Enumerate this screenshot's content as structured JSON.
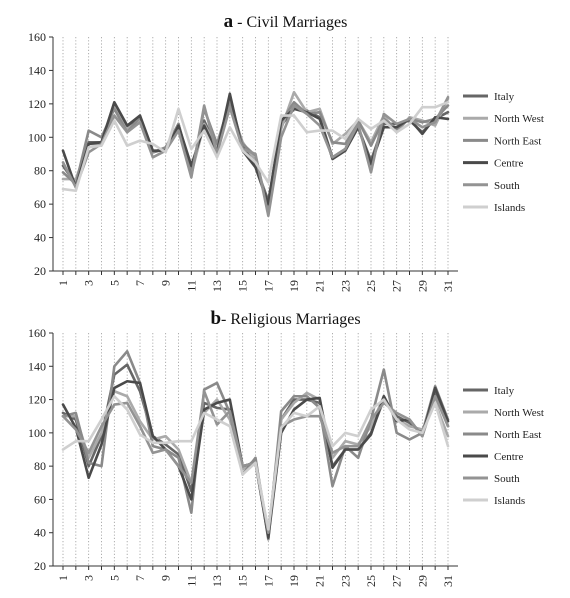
{
  "chart_data": [
    {
      "type": "line",
      "panel_letter": "a",
      "title": " - Civil Marriages",
      "x": [
        1,
        2,
        3,
        4,
        5,
        6,
        7,
        8,
        9,
        10,
        11,
        12,
        13,
        14,
        15,
        16,
        17,
        18,
        19,
        20,
        21,
        22,
        23,
        24,
        25,
        26,
        27,
        28,
        29,
        30,
        31
      ],
      "xticks": [
        1,
        3,
        5,
        7,
        9,
        11,
        13,
        15,
        17,
        19,
        21,
        23,
        25,
        27,
        29,
        31
      ],
      "ylim": [
        20,
        160
      ],
      "yticks": [
        20,
        40,
        60,
        80,
        100,
        120,
        140,
        160
      ],
      "grid": "vertical-dotted",
      "legend_position": "right",
      "series": [
        {
          "name": "Italy",
          "color": "#666666",
          "values": [
            83,
            72,
            97,
            97,
            120,
            106,
            112,
            91,
            93,
            108,
            80,
            110,
            93,
            123,
            95,
            83,
            62,
            107,
            117,
            116,
            112,
            88,
            93,
            106,
            86,
            108,
            108,
            110,
            103,
            111,
            115
          ]
        },
        {
          "name": "North West",
          "color": "#aaaaaa",
          "values": [
            75,
            75,
            96,
            96,
            118,
            105,
            110,
            92,
            92,
            106,
            78,
            108,
            94,
            118,
            97,
            86,
            58,
            105,
            127,
            115,
            117,
            96,
            102,
            110,
            97,
            113,
            103,
            112,
            110,
            107,
            123
          ]
        },
        {
          "name": "North East",
          "color": "#8a8a8a",
          "values": [
            79,
            72,
            104,
            100,
            117,
            103,
            112,
            91,
            94,
            108,
            77,
            117,
            96,
            121,
            96,
            89,
            56,
            109,
            121,
            114,
            115,
            97,
            96,
            110,
            95,
            111,
            105,
            111,
            109,
            111,
            119
          ]
        },
        {
          "name": "Centre",
          "color": "#4a4a4a",
          "values": [
            92,
            70,
            96,
            97,
            121,
            107,
            113,
            92,
            92,
            107,
            83,
            107,
            91,
            126,
            92,
            82,
            60,
            110,
            117,
            115,
            111,
            87,
            92,
            106,
            84,
            106,
            106,
            111,
            102,
            112,
            111
          ]
        },
        {
          "name": "South",
          "color": "#939393",
          "values": [
            85,
            70,
            91,
            96,
            113,
            103,
            109,
            88,
            92,
            104,
            76,
            119,
            90,
            118,
            93,
            90,
            53,
            100,
            119,
            114,
            107,
            88,
            93,
            108,
            79,
            114,
            108,
            111,
            106,
            109,
            124
          ]
        },
        {
          "name": "Islands",
          "color": "#cfcfcf",
          "values": [
            69,
            68,
            94,
            95,
            110,
            95,
            98,
            96,
            91,
            117,
            93,
            104,
            88,
            106,
            92,
            85,
            73,
            113,
            113,
            103,
            104,
            104,
            99,
            111,
            105,
            110,
            103,
            108,
            118,
            118,
            121
          ]
        }
      ]
    },
    {
      "type": "line",
      "panel_letter": "b",
      "title": "- Religious Marriages",
      "x": [
        1,
        2,
        3,
        4,
        5,
        6,
        7,
        8,
        9,
        10,
        11,
        12,
        13,
        14,
        15,
        16,
        17,
        18,
        19,
        20,
        21,
        22,
        23,
        24,
        25,
        26,
        27,
        28,
        29,
        30,
        31
      ],
      "xticks": [
        1,
        3,
        5,
        7,
        9,
        11,
        13,
        15,
        17,
        19,
        21,
        23,
        25,
        27,
        29,
        31
      ],
      "ylim": [
        20,
        160
      ],
      "yticks": [
        20,
        40,
        60,
        80,
        100,
        120,
        140,
        160
      ],
      "grid": "vertical-dotted",
      "legend_position": "right",
      "series": [
        {
          "name": "Italy",
          "color": "#666666",
          "values": [
            112,
            108,
            80,
            98,
            135,
            141,
            125,
            98,
            93,
            87,
            65,
            118,
            115,
            114,
            80,
            82,
            38,
            108,
            120,
            120,
            118,
            80,
            90,
            90,
            100,
            120,
            110,
            106,
            100,
            125,
            104
          ]
        },
        {
          "name": "North West",
          "color": "#aaaaaa",
          "values": [
            110,
            110,
            85,
            100,
            125,
            122,
            107,
            96,
            98,
            90,
            70,
            112,
            120,
            108,
            78,
            84,
            40,
            108,
            118,
            124,
            120,
            85,
            95,
            93,
            104,
            122,
            108,
            104,
            102,
            118,
            98
          ]
        },
        {
          "name": "North East",
          "color": "#8a8a8a",
          "values": [
            110,
            112,
            82,
            80,
            140,
            149,
            130,
            92,
            90,
            85,
            52,
            126,
            130,
            112,
            75,
            85,
            36,
            113,
            122,
            122,
            115,
            68,
            92,
            85,
            108,
            138,
            100,
            96,
            100,
            128,
            108
          ]
        },
        {
          "name": "Centre",
          "color": "#4a4a4a",
          "values": [
            117,
            103,
            73,
            93,
            127,
            131,
            130,
            98,
            90,
            80,
            60,
            114,
            118,
            120,
            80,
            82,
            37,
            100,
            114,
            120,
            121,
            79,
            90,
            90,
            99,
            122,
            107,
            108,
            98,
            127,
            107
          ]
        },
        {
          "name": "South",
          "color": "#939393",
          "values": [
            110,
            102,
            88,
            104,
            117,
            118,
            104,
            88,
            90,
            80,
            70,
            125,
            105,
            113,
            80,
            82,
            40,
            104,
            108,
            110,
            110,
            88,
            92,
            92,
            108,
            118,
            112,
            108,
            98,
            122,
            104
          ]
        },
        {
          "name": "Islands",
          "color": "#cfcfcf",
          "values": [
            90,
            95,
            95,
            108,
            122,
            114,
            99,
            94,
            94,
            95,
            95,
            112,
            108,
            104,
            75,
            82,
            42,
            103,
            112,
            110,
            116,
            92,
            100,
            98,
            114,
            120,
            108,
            102,
            100,
            118,
            92
          ]
        }
      ]
    }
  ]
}
